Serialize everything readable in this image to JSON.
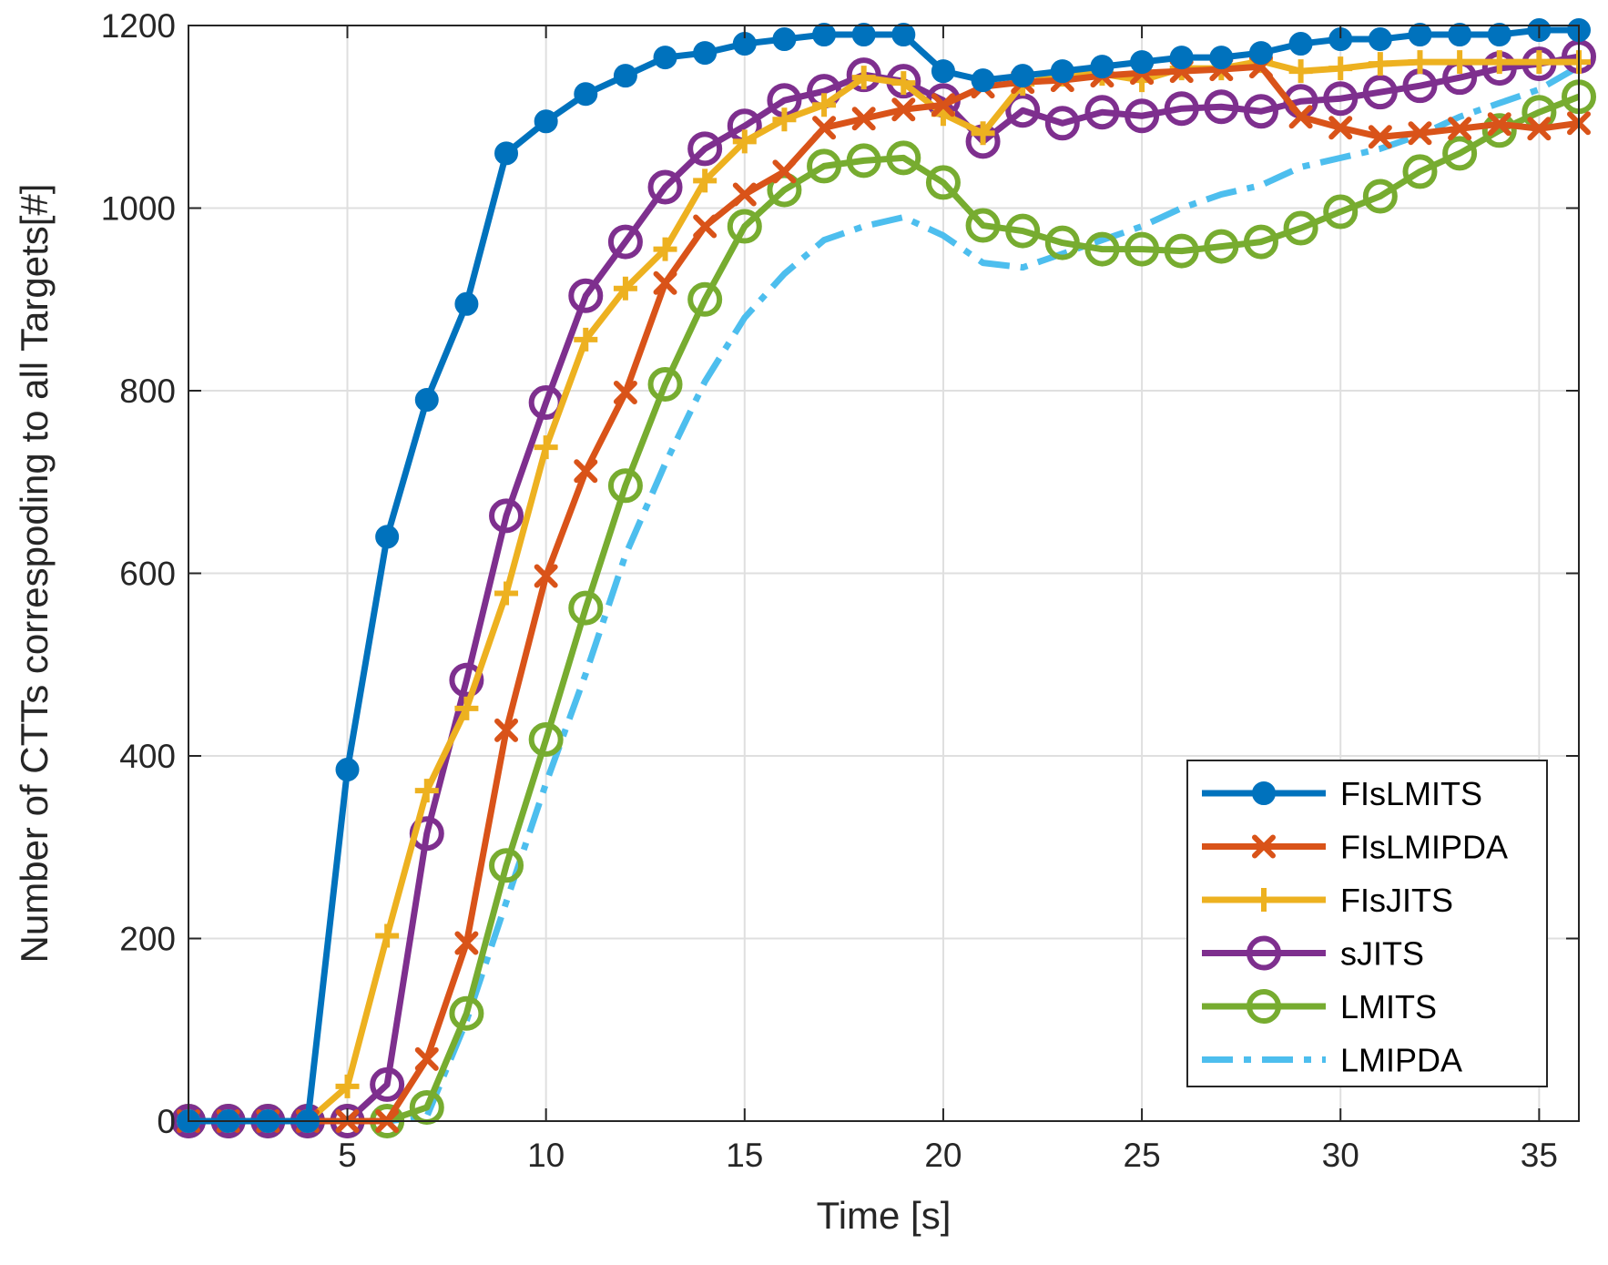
{
  "chart_data": {
    "type": "line",
    "title": "",
    "xlabel": "Time [s]",
    "ylabel": "Number of CTTs correspoding to all Targets[#]",
    "xlim": [
      1,
      36
    ],
    "ylim": [
      0,
      1200
    ],
    "xticks": [
      5,
      10,
      15,
      20,
      25,
      30,
      35
    ],
    "yticks": [
      0,
      200,
      400,
      600,
      800,
      1000,
      1200
    ],
    "grid": true,
    "legend_position": "bottom-right",
    "x": [
      1,
      2,
      3,
      4,
      5,
      6,
      7,
      8,
      9,
      10,
      11,
      12,
      13,
      14,
      15,
      16,
      17,
      18,
      19,
      20,
      21,
      22,
      23,
      24,
      25,
      26,
      27,
      28,
      29,
      30,
      31,
      32,
      33,
      34,
      35,
      36
    ],
    "series": [
      {
        "name": "FIsLMITS",
        "color": "#0072BD",
        "marker": "dot",
        "line": "solid",
        "values": [
          0,
          0,
          0,
          0,
          385,
          640,
          790,
          895,
          1060,
          1095,
          1125,
          1145,
          1165,
          1170,
          1180,
          1185,
          1190,
          1190,
          1190,
          1150,
          1140,
          1145,
          1150,
          1155,
          1160,
          1165,
          1165,
          1170,
          1180,
          1185,
          1185,
          1190,
          1190,
          1190,
          1195,
          1195
        ]
      },
      {
        "name": "FIsLMIPDA",
        "color": "#D95319",
        "marker": "x",
        "line": "solid",
        "values": [
          0,
          0,
          0,
          0,
          0,
          0,
          68,
          195,
          428,
          597,
          712,
          798,
          918,
          980,
          1015,
          1040,
          1088,
          1098,
          1108,
          1113,
          1133,
          1138,
          1140,
          1145,
          1148,
          1150,
          1152,
          1155,
          1100,
          1088,
          1078,
          1082,
          1087,
          1092,
          1087,
          1093
        ]
      },
      {
        "name": "FIsJITS",
        "color": "#EDB120",
        "marker": "plus",
        "line": "solid",
        "values": [
          0,
          0,
          0,
          0,
          38,
          203,
          362,
          452,
          578,
          738,
          856,
          912,
          955,
          1030,
          1073,
          1097,
          1113,
          1143,
          1137,
          1103,
          1082,
          1136,
          1146,
          1147,
          1140,
          1153,
          1153,
          1161,
          1150,
          1153,
          1158,
          1160,
          1160,
          1160,
          1160,
          1160
        ]
      },
      {
        "name": "sJITS",
        "color": "#7E2F8E",
        "marker": "circle",
        "line": "solid",
        "values": [
          0,
          0,
          0,
          0,
          0,
          40,
          315,
          483,
          663,
          787,
          904,
          963,
          1023,
          1065,
          1090,
          1118,
          1128,
          1146,
          1139,
          1118,
          1073,
          1107,
          1093,
          1105,
          1101,
          1109,
          1111,
          1106,
          1117,
          1120,
          1127,
          1134,
          1143,
          1153,
          1158,
          1166
        ]
      },
      {
        "name": "LMITS",
        "color": "#77AC30",
        "marker": "circle",
        "line": "solid",
        "values": [
          0,
          0,
          0,
          0,
          0,
          0,
          15,
          118,
          280,
          418,
          562,
          696,
          807,
          900,
          980,
          1020,
          1046,
          1052,
          1055,
          1028,
          981,
          975,
          962,
          955,
          955,
          953,
          958,
          963,
          978,
          996,
          1013,
          1040,
          1060,
          1085,
          1105,
          1122
        ]
      },
      {
        "name": "LMIPDA",
        "color": "#4DBEEE",
        "marker": "none",
        "line": "dashdot",
        "values": [
          0,
          0,
          0,
          0,
          0,
          0,
          5,
          110,
          240,
          370,
          490,
          620,
          720,
          810,
          880,
          928,
          965,
          980,
          990,
          970,
          940,
          935,
          950,
          965,
          980,
          1000,
          1015,
          1025,
          1045,
          1055,
          1065,
          1080,
          1100,
          1115,
          1130,
          1155
        ]
      }
    ]
  }
}
